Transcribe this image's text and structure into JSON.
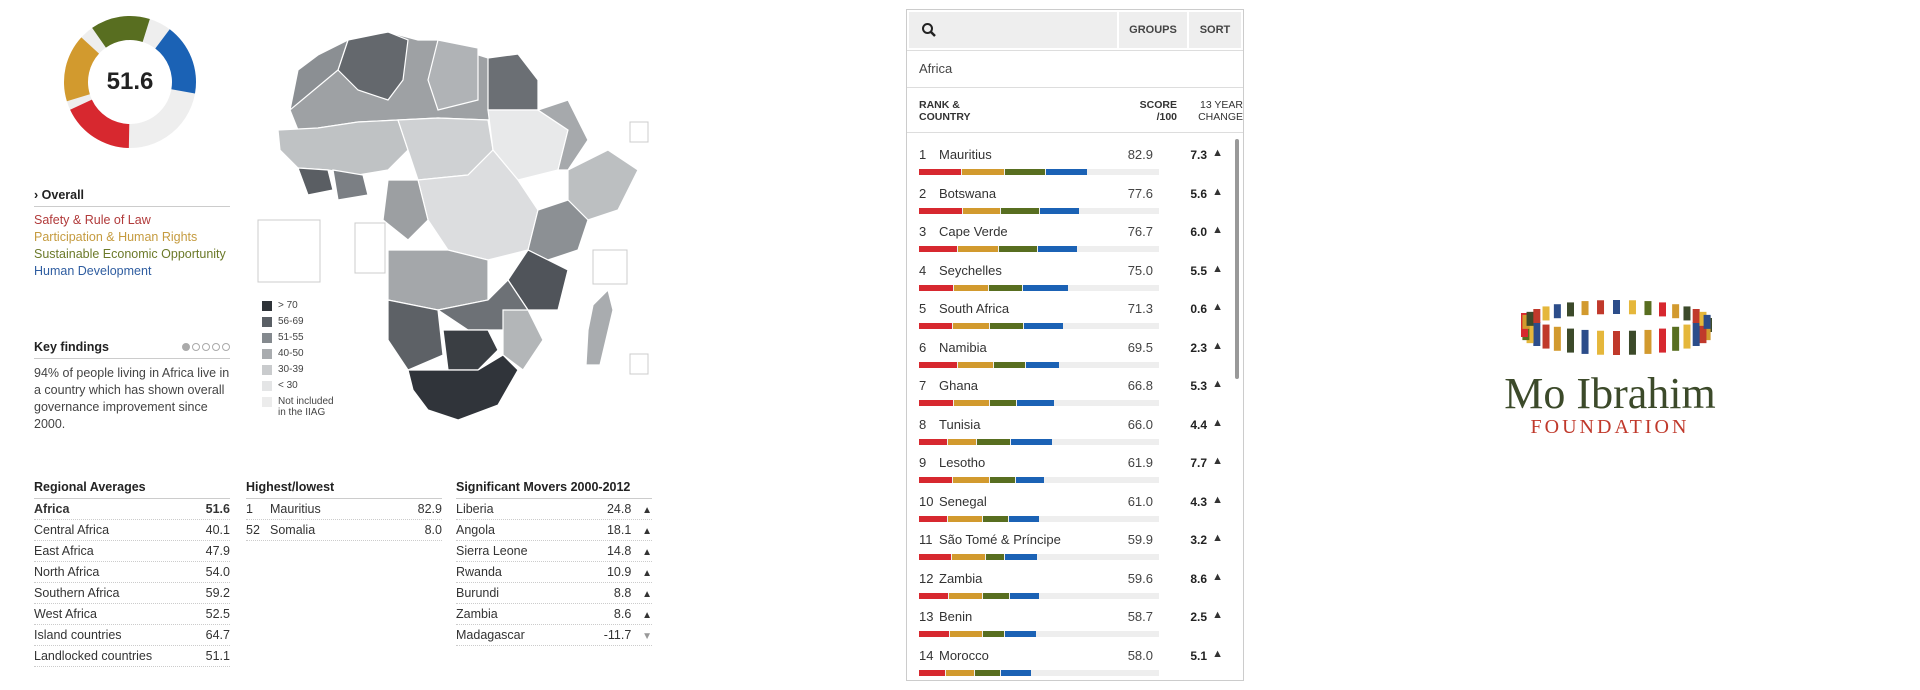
{
  "overview": {
    "score": "51.6",
    "segments": [
      {
        "name": "Safety & Rule of Law",
        "color": "#d7282f",
        "value": 0.55
      },
      {
        "name": "Participation & Human Rights",
        "color": "#d29a2e",
        "value": 0.51
      },
      {
        "name": "Sustainable Economic Opportunity",
        "color": "#586e20",
        "value": 0.45
      },
      {
        "name": "Human Development",
        "color": "#1b62b5",
        "value": 0.54
      }
    ],
    "overall_label": "Overall",
    "indicators": [
      {
        "label": "Safety & Rule of Law",
        "color": "#b13a3a"
      },
      {
        "label": "Participation & Human Rights",
        "color": "#c59b3f"
      },
      {
        "label": "Sustainable Economic Opportunity",
        "color": "#6c7a2a"
      },
      {
        "label": "Human Development",
        "color": "#2f5da0"
      }
    ]
  },
  "key_findings": {
    "title": "Key findings",
    "text": "94% of people living in Africa live in a country which has shown overall governance improvement since 2000."
  },
  "legend": [
    {
      "label": "> 70",
      "color": "#2e3338"
    },
    {
      "label": "56-69",
      "color": "#5a5f65"
    },
    {
      "label": "51-55",
      "color": "#84898e"
    },
    {
      "label": "40-50",
      "color": "#a9acaf"
    },
    {
      "label": "30-39",
      "color": "#c9cbcd"
    },
    {
      "label": "< 30",
      "color": "#e4e5e6"
    },
    {
      "label": "Not included",
      "label2": "in the IIAG",
      "color": "#ececec"
    }
  ],
  "regional": {
    "title": "Regional Averages",
    "rows": [
      {
        "name": "Africa",
        "value": "51.6",
        "bold": true
      },
      {
        "name": "Central Africa",
        "value": "40.1"
      },
      {
        "name": "East Africa",
        "value": "47.9"
      },
      {
        "name": "North Africa",
        "value": "54.0"
      },
      {
        "name": "Southern Africa",
        "value": "59.2"
      },
      {
        "name": "West Africa",
        "value": "52.5"
      },
      {
        "name": "Island countries",
        "value": "64.7"
      },
      {
        "name": "Landlocked countries",
        "value": "51.1"
      }
    ]
  },
  "highlow": {
    "title": "Highest/lowest",
    "rows": [
      {
        "rank": "1",
        "name": "Mauritius",
        "value": "82.9"
      },
      {
        "rank": "52",
        "name": "Somalia",
        "value": "8.0"
      }
    ]
  },
  "movers": {
    "title": "Significant Movers 2000-2012",
    "rows": [
      {
        "name": "Liberia",
        "value": "24.8",
        "dir": "up"
      },
      {
        "name": "Angola",
        "value": "18.1",
        "dir": "up"
      },
      {
        "name": "Sierra Leone",
        "value": "14.8",
        "dir": "up"
      },
      {
        "name": "Rwanda",
        "value": "10.9",
        "dir": "up"
      },
      {
        "name": "Burundi",
        "value": "8.8",
        "dir": "up"
      },
      {
        "name": "Zambia",
        "value": "8.6",
        "dir": "up"
      },
      {
        "name": "Madagascar",
        "value": "-11.7",
        "dir": "down"
      }
    ]
  },
  "ranking": {
    "groups_label": "GROUPS",
    "sort_label": "SORT",
    "filter": "Africa",
    "col1_l1": "RANK &",
    "col1_l2": "COUNTRY",
    "col2_l1": "SCORE",
    "col2_l2": "/100",
    "col3_l1": "13 YEAR",
    "col3_l2": "CHANGE",
    "rows": [
      {
        "rank": "1",
        "name": "Mauritius",
        "score": "82.9",
        "change": "7.3",
        "bars": [
          0.72,
          0.71,
          0.68,
          0.71
        ]
      },
      {
        "rank": "2",
        "name": "Botswana",
        "score": "77.6",
        "change": "5.6",
        "bars": [
          0.73,
          0.63,
          0.66,
          0.66
        ]
      },
      {
        "rank": "3",
        "name": "Cape Verde",
        "score": "76.7",
        "change": "6.0",
        "bars": [
          0.65,
          0.69,
          0.64,
          0.67
        ]
      },
      {
        "rank": "4",
        "name": "Seychelles",
        "score": "75.0",
        "change": "5.5",
        "bars": [
          0.58,
          0.58,
          0.57,
          0.77
        ]
      },
      {
        "rank": "5",
        "name": "South Africa",
        "score": "71.3",
        "change": "0.6",
        "bars": [
          0.57,
          0.62,
          0.56,
          0.66
        ]
      },
      {
        "rank": "6",
        "name": "Namibia",
        "score": "69.5",
        "change": "2.3",
        "bars": [
          0.65,
          0.6,
          0.54,
          0.56
        ]
      },
      {
        "rank": "7",
        "name": "Ghana",
        "score": "66.8",
        "change": "5.3",
        "bars": [
          0.59,
          0.59,
          0.46,
          0.62
        ]
      },
      {
        "rank": "8",
        "name": "Tunisia",
        "score": "66.0",
        "change": "4.4",
        "bars": [
          0.48,
          0.49,
          0.57,
          0.69
        ]
      },
      {
        "rank": "9",
        "name": "Lesotho",
        "score": "61.9",
        "change": "7.7",
        "bars": [
          0.57,
          0.61,
          0.43,
          0.49
        ]
      },
      {
        "rank": "10",
        "name": "Senegal",
        "score": "61.0",
        "change": "4.3",
        "bars": [
          0.48,
          0.59,
          0.43,
          0.52
        ]
      },
      {
        "rank": "11",
        "name": "São Tomé & Príncipe",
        "score": "59.9",
        "change": "3.2",
        "bars": [
          0.55,
          0.57,
          0.31,
          0.55
        ]
      },
      {
        "rank": "12",
        "name": "Zambia",
        "score": "59.6",
        "change": "8.6",
        "bars": [
          0.5,
          0.56,
          0.45,
          0.51
        ]
      },
      {
        "rank": "13",
        "name": "Benin",
        "score": "58.7",
        "change": "2.5",
        "bars": [
          0.52,
          0.54,
          0.38,
          0.52
        ]
      },
      {
        "rank": "14",
        "name": "Morocco",
        "score": "58.0",
        "change": "5.1",
        "bars": [
          0.45,
          0.48,
          0.44,
          0.52
        ]
      }
    ]
  },
  "logo": {
    "name": "Mo Ibrahim",
    "sub": "FOUNDATION"
  },
  "icons": {
    "search": "search-icon",
    "up": "chevron-up-icon",
    "down": "chevron-down-icon"
  }
}
